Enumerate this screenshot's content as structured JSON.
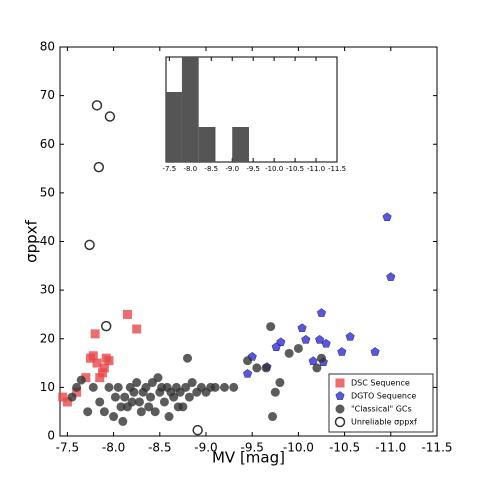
{
  "chart_data": [
    {
      "type": "scatter",
      "x_label": "MV [mag]",
      "y_label": "σppxf",
      "xlim": [
        -7.42,
        -11.5
      ],
      "ylim": [
        0,
        80
      ],
      "xticks": [
        -7.5,
        {
          "value": -8,
          "label": "-8.0"
        },
        -8.5,
        {
          "value": -9,
          "label": "-9.0"
        },
        -9.5,
        {
          "value": -10,
          "label": "-10.0"
        },
        -10.5,
        {
          "value": -11,
          "label": "-11.0"
        },
        -11.5
      ],
      "yticks": [
        0,
        10,
        20,
        30,
        40,
        50,
        60,
        70,
        80
      ],
      "legend": "lower right",
      "series": [
        {
          "name": "DSC Sequence",
          "color": "#e8474a",
          "marker": "square",
          "x": [
            -7.45,
            -7.5,
            -7.6,
            -7.7,
            -7.75,
            -7.78,
            -7.8,
            -7.82,
            -7.85,
            -7.88,
            -7.9,
            -7.92,
            -7.95,
            -8.15,
            -8.25
          ],
          "y": [
            8,
            7,
            9,
            12,
            16,
            16.5,
            21,
            15,
            12,
            13,
            14,
            16,
            15.5,
            25,
            22
          ]
        },
        {
          "name": "DGTO Sequence",
          "color": "#3a3ae0",
          "marker": "pentagon",
          "x": [
            -10.96,
            -11.0,
            -10.25,
            -10.04,
            -10.08,
            -10.23,
            -10.3,
            -10.56,
            -10.47,
            -10.83,
            -9.81,
            -9.76,
            -9.5,
            -9.45,
            -9.66,
            -10.16,
            -10.27
          ],
          "y": [
            45,
            32.7,
            25.3,
            22.2,
            19.8,
            19.8,
            19,
            20.4,
            17.3,
            17.3,
            19.3,
            18.3,
            16.3,
            12.8,
            14.2,
            15.4,
            15.2
          ]
        },
        {
          "name": "\"Classical\" GCs",
          "color": "#333333",
          "marker": "circle",
          "x": [
            -7.55,
            -7.6,
            -7.65,
            -7.72,
            -7.78,
            -7.85,
            -7.9,
            -7.95,
            -8.0,
            -8.02,
            -8.05,
            -8.08,
            -8.1,
            -8.12,
            -8.15,
            -8.18,
            -8.2,
            -8.22,
            -8.25,
            -8.28,
            -8.3,
            -8.32,
            -8.35,
            -8.38,
            -8.4,
            -8.42,
            -8.45,
            -8.48,
            -8.5,
            -8.52,
            -8.55,
            -8.58,
            -8.6,
            -8.62,
            -8.65,
            -8.68,
            -8.7,
            -8.72,
            -8.75,
            -8.78,
            -8.8,
            -8.82,
            -8.85,
            -8.9,
            -8.95,
            -9.0,
            -9.05,
            -9.1,
            -9.2,
            -9.3,
            -9.45,
            -9.55,
            -9.65,
            -9.7,
            -9.72,
            -9.75,
            -9.8,
            -9.9,
            -10.0,
            -10.2,
            -10.25
          ],
          "y": [
            8,
            10,
            11.5,
            5,
            10,
            7,
            5,
            10,
            4,
            8,
            10,
            6,
            3,
            8,
            6,
            10,
            7,
            9,
            11,
            7,
            5,
            9,
            10,
            6,
            8,
            11,
            5,
            12,
            9,
            10,
            7,
            10,
            4,
            9,
            8,
            10,
            6,
            9,
            6,
            10,
            16,
            8,
            11,
            9,
            10,
            9,
            10,
            10,
            10,
            10,
            15.5,
            14,
            14,
            22.5,
            4,
            9,
            11,
            17,
            18,
            14,
            16
          ]
        },
        {
          "name": "Unreliable σppxf",
          "color": "#333333",
          "marker": "open-circle",
          "x": [
            -7.74,
            -7.82,
            -7.84,
            -7.96,
            -7.92,
            -8.91
          ],
          "y": [
            39.3,
            68,
            55.3,
            65.7,
            22.6,
            1.2
          ]
        }
      ]
    },
    {
      "type": "histogram",
      "color": "#555555",
      "bins": [
        -7.42,
        -7.8,
        -8.2,
        -8.6,
        -9.0,
        -9.4
      ],
      "counts": [
        2,
        3,
        1,
        0,
        1
      ],
      "xlim": [
        -7.42,
        -11.5
      ],
      "ylim": [
        0,
        3
      ],
      "xticks": [
        -7.5,
        {
          "value": -8,
          "label": "-8.0"
        },
        -8.5,
        {
          "value": -9,
          "label": "-9.0"
        },
        -9.5,
        {
          "value": -10,
          "label": "-10.0"
        },
        -10.5,
        {
          "value": -11,
          "label": "-11.0"
        },
        -11.5
      ]
    }
  ]
}
